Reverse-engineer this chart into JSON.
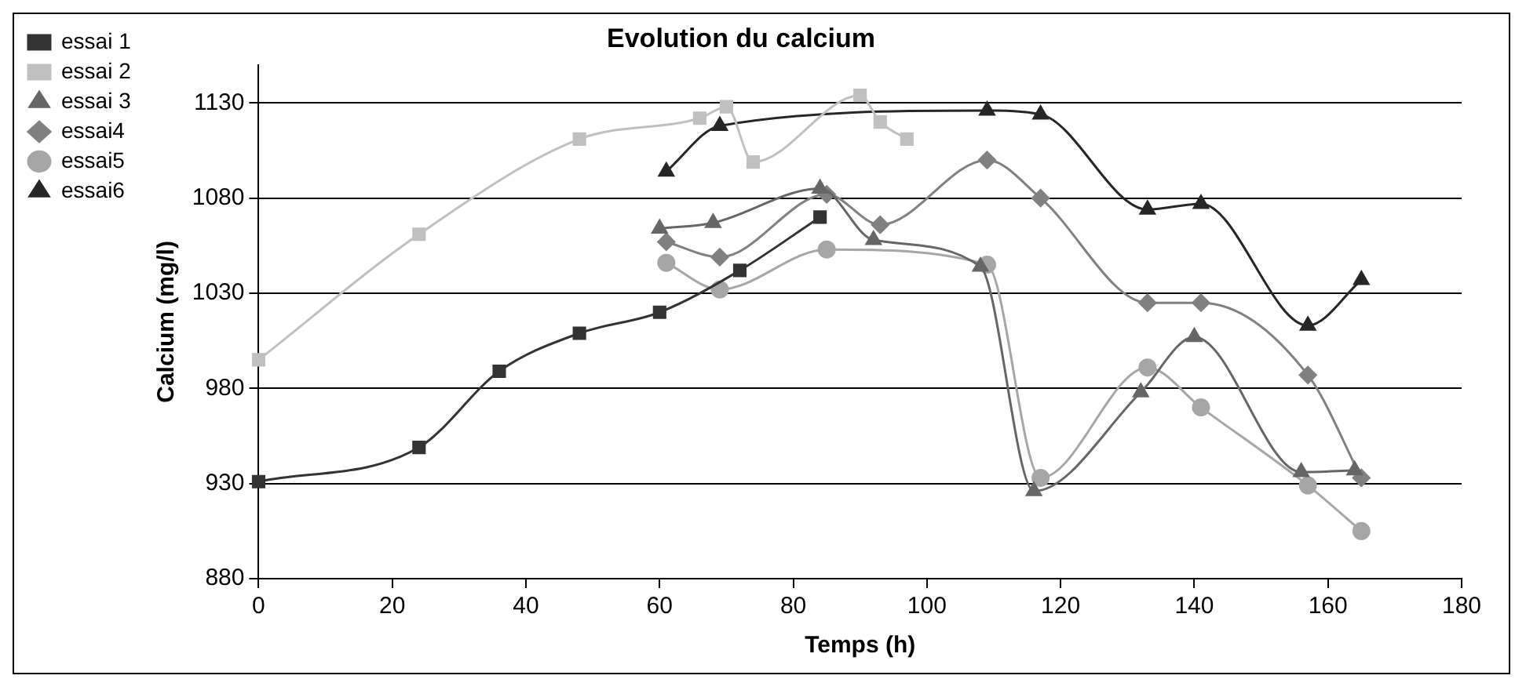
{
  "chart_data": {
    "type": "line",
    "title": "Evolution du calcium",
    "xlabel": "Temps (h)",
    "ylabel": "Calcium (mg/l)",
    "xlim": [
      0,
      180
    ],
    "xticks": [
      0,
      20,
      40,
      60,
      80,
      100,
      120,
      140,
      160,
      180
    ],
    "ylim": [
      880,
      1150
    ],
    "yticks": [
      880,
      930,
      980,
      1030,
      1080,
      1130
    ],
    "grid": "y",
    "legend": "top left",
    "series": [
      {
        "name": "essai 1",
        "color": "#333333",
        "marker": "square",
        "x": [
          0,
          24,
          36,
          48,
          60,
          72,
          84
        ],
        "values": [
          931,
          949,
          989,
          1009,
          1020,
          1042,
          1070
        ]
      },
      {
        "name": "essai 2",
        "color": "#c0c0c0",
        "marker": "square",
        "x": [
          0,
          24,
          48,
          66,
          70,
          74,
          90,
          93,
          97
        ],
        "values": [
          995,
          1061,
          1111,
          1122,
          1128,
          1099,
          1134,
          1120,
          1111
        ]
      },
      {
        "name": "essai 3",
        "color": "#666666",
        "marker": "triangle",
        "x": [
          60,
          68,
          84,
          92,
          108,
          116,
          132,
          140,
          156,
          164
        ],
        "values": [
          1064,
          1067,
          1085,
          1058,
          1044,
          926,
          978,
          1007,
          936,
          937
        ]
      },
      {
        "name": "essai4",
        "color": "#808080",
        "marker": "diamond",
        "x": [
          61,
          69,
          85,
          93,
          109,
          117,
          133,
          141,
          157,
          165
        ],
        "values": [
          1057,
          1049,
          1082,
          1066,
          1100,
          1080,
          1025,
          1025,
          987,
          933
        ]
      },
      {
        "name": "essai5",
        "color": "#a6a6a6",
        "marker": "circle",
        "x": [
          61,
          69,
          85,
          109,
          117,
          133,
          141,
          157,
          165
        ],
        "values": [
          1046,
          1032,
          1053,
          1045,
          933,
          991,
          970,
          929,
          905
        ]
      },
      {
        "name": "essai6",
        "color": "#262626",
        "marker": "triangle",
        "x": [
          61,
          69,
          109,
          117,
          133,
          141,
          157,
          165
        ],
        "values": [
          1094,
          1118,
          1126,
          1124,
          1074,
          1077,
          1013,
          1037
        ]
      }
    ]
  }
}
